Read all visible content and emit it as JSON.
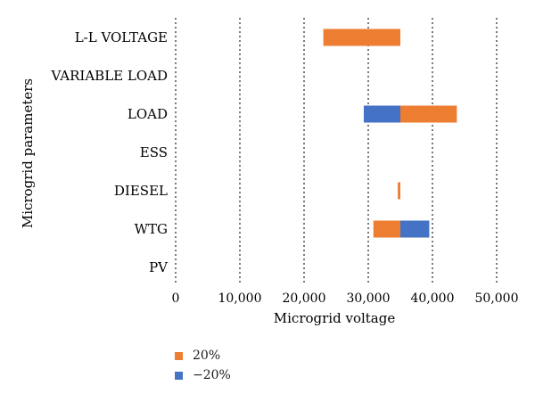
{
  "chart_data": {
    "type": "bar",
    "orientation": "horizontal",
    "stacked": false,
    "categories": [
      "L-L VOLTAGE",
      "VARIABLE LOAD",
      "LOAD",
      "ESS",
      "DIESEL",
      "WTG",
      "PV"
    ],
    "series": [
      {
        "name": "20%",
        "color": "#ED7D31",
        "ranges": [
          [
            23000,
            35000
          ],
          [
            35000,
            35000
          ],
          [
            35000,
            43800
          ],
          [
            35000,
            35000
          ],
          [
            34600,
            35000
          ],
          [
            30800,
            35000
          ],
          [
            35000,
            35000
          ]
        ]
      },
      {
        "name": "−20%",
        "color": "#4472C4",
        "ranges": [
          [
            35000,
            35000
          ],
          [
            35000,
            35000
          ],
          [
            29300,
            35000
          ],
          [
            35000,
            35000
          ],
          [
            35000,
            35000
          ],
          [
            35000,
            39500
          ],
          [
            35000,
            35000
          ]
        ]
      }
    ],
    "base_value": 35000,
    "xlim": [
      0,
      50000
    ],
    "xticks": [
      0,
      10000,
      20000,
      30000,
      40000,
      50000
    ],
    "xtick_labels": [
      "0",
      "10,000",
      "20,000",
      "30,000",
      "40,000",
      "50,000"
    ],
    "xlabel": "Microgrid voltage",
    "ylabel": "Microgrid parameters",
    "grid": "vertical dotted",
    "legend_position": "bottom"
  }
}
